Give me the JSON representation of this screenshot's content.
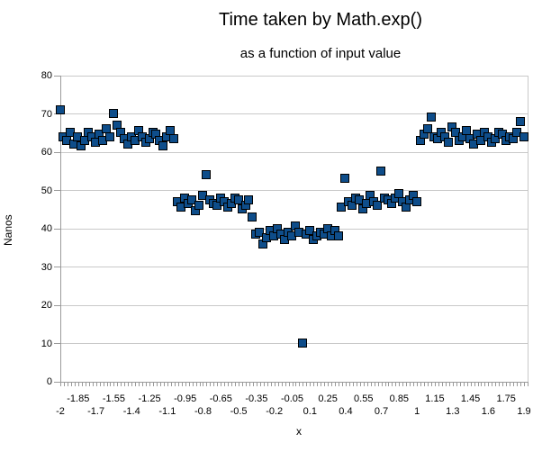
{
  "chart": {
    "title": "Time taken by Math.exp()",
    "subtitle": "as a function of input value",
    "y_axis_title": "Nanos",
    "x_axis_title": "x",
    "colors": {
      "marker_fill": "#0e4d8a",
      "marker_border": "#000000",
      "gridline": "#c9c9c9",
      "axis": "#9a9a9a",
      "text": "#000000",
      "background": "#ffffff"
    }
  },
  "chart_data": {
    "type": "scatter",
    "title": "Time taken by Math.exp()",
    "subtitle": "as a function of input value",
    "xlabel": "x",
    "ylabel": "Nanos",
    "xlim": [
      -2,
      1.93
    ],
    "ylim": [
      0,
      80
    ],
    "grid": "horizontal",
    "legend": "none",
    "marker": "filled-square",
    "y_ticks": [
      0,
      10,
      20,
      30,
      40,
      50,
      60,
      70,
      80
    ],
    "x_tick_labels_row1": [
      "-1.85",
      "-1.55",
      "-1.25",
      "-0.95",
      "-0.65",
      "-0.35",
      "-0.05",
      "0.25",
      "0.55",
      "0.85",
      "1.15",
      "1.45",
      "1.75"
    ],
    "x_tick_labels_row2": [
      "-2",
      "-1.7",
      "-1.4",
      "-1.1",
      "-0.8",
      "-0.5",
      "-0.2",
      "0.1",
      "0.4",
      "0.7",
      "1",
      "1.3",
      "1.6",
      "1.9"
    ],
    "x_minor_tick_step": 0.03,
    "points": [
      [
        -2.0,
        71
      ],
      [
        -1.97,
        64
      ],
      [
        -1.94,
        63
      ],
      [
        -1.91,
        65
      ],
      [
        -1.88,
        62
      ],
      [
        -1.85,
        64
      ],
      [
        -1.82,
        61.5
      ],
      [
        -1.79,
        63
      ],
      [
        -1.76,
        65
      ],
      [
        -1.73,
        64
      ],
      [
        -1.7,
        62.5
      ],
      [
        -1.67,
        64.5
      ],
      [
        -1.64,
        63
      ],
      [
        -1.61,
        66
      ],
      [
        -1.58,
        64
      ],
      [
        -1.55,
        70
      ],
      [
        -1.52,
        67
      ],
      [
        -1.49,
        65
      ],
      [
        -1.46,
        63.5
      ],
      [
        -1.43,
        62
      ],
      [
        -1.4,
        64
      ],
      [
        -1.37,
        63
      ],
      [
        -1.34,
        65.5
      ],
      [
        -1.31,
        64
      ],
      [
        -1.28,
        62.5
      ],
      [
        -1.25,
        63.5
      ],
      [
        -1.22,
        65
      ],
      [
        -1.19,
        64.5
      ],
      [
        -1.16,
        63
      ],
      [
        -1.13,
        61.5
      ],
      [
        -1.1,
        64
      ],
      [
        -1.07,
        65.5
      ],
      [
        -1.04,
        63.5
      ],
      [
        -1.01,
        47
      ],
      [
        -0.98,
        45.5
      ],
      [
        -0.95,
        48
      ],
      [
        -0.92,
        46.5
      ],
      [
        -0.89,
        47.5
      ],
      [
        -0.86,
        44.5
      ],
      [
        -0.83,
        46
      ],
      [
        -0.8,
        48.5
      ],
      [
        -0.77,
        54
      ],
      [
        -0.74,
        47.5
      ],
      [
        -0.71,
        46.5
      ],
      [
        -0.68,
        46
      ],
      [
        -0.65,
        48
      ],
      [
        -0.62,
        47
      ],
      [
        -0.59,
        45.5
      ],
      [
        -0.56,
        46.5
      ],
      [
        -0.53,
        48
      ],
      [
        -0.5,
        47.5
      ],
      [
        -0.47,
        45
      ],
      [
        -0.44,
        46
      ],
      [
        -0.41,
        47.5
      ],
      [
        -0.38,
        43
      ],
      [
        -0.35,
        38.5
      ],
      [
        -0.32,
        39
      ],
      [
        -0.29,
        36
      ],
      [
        -0.26,
        37.5
      ],
      [
        -0.23,
        39.5
      ],
      [
        -0.2,
        38
      ],
      [
        -0.17,
        40
      ],
      [
        -0.14,
        38.5
      ],
      [
        -0.11,
        37
      ],
      [
        -0.08,
        39
      ],
      [
        -0.05,
        38
      ],
      [
        -0.02,
        40.5
      ],
      [
        0.01,
        39
      ],
      [
        0.04,
        10
      ],
      [
        0.07,
        38.5
      ],
      [
        0.1,
        39.5
      ],
      [
        0.13,
        37
      ],
      [
        0.16,
        38
      ],
      [
        0.19,
        39
      ],
      [
        0.22,
        38.5
      ],
      [
        0.25,
        40
      ],
      [
        0.28,
        38
      ],
      [
        0.31,
        39.5
      ],
      [
        0.34,
        38
      ],
      [
        0.37,
        45.5
      ],
      [
        0.4,
        53
      ],
      [
        0.43,
        47
      ],
      [
        0.46,
        46
      ],
      [
        0.49,
        48
      ],
      [
        0.52,
        47.5
      ],
      [
        0.55,
        45
      ],
      [
        0.58,
        46.5
      ],
      [
        0.61,
        48.5
      ],
      [
        0.64,
        47
      ],
      [
        0.67,
        46
      ],
      [
        0.7,
        55
      ],
      [
        0.73,
        48
      ],
      [
        0.76,
        47.5
      ],
      [
        0.79,
        46.5
      ],
      [
        0.82,
        48
      ],
      [
        0.85,
        49
      ],
      [
        0.88,
        47
      ],
      [
        0.91,
        45.5
      ],
      [
        0.94,
        47.5
      ],
      [
        0.97,
        48.5
      ],
      [
        1.0,
        47
      ],
      [
        1.03,
        63
      ],
      [
        1.06,
        64.5
      ],
      [
        1.09,
        66
      ],
      [
        1.12,
        69
      ],
      [
        1.15,
        64
      ],
      [
        1.18,
        63.5
      ],
      [
        1.21,
        65
      ],
      [
        1.24,
        64
      ],
      [
        1.27,
        62.5
      ],
      [
        1.3,
        66.5
      ],
      [
        1.33,
        65
      ],
      [
        1.36,
        63
      ],
      [
        1.39,
        64
      ],
      [
        1.42,
        65.5
      ],
      [
        1.45,
        63.5
      ],
      [
        1.48,
        62
      ],
      [
        1.51,
        64.5
      ],
      [
        1.54,
        63
      ],
      [
        1.57,
        65
      ],
      [
        1.6,
        64
      ],
      [
        1.63,
        62.5
      ],
      [
        1.66,
        63.5
      ],
      [
        1.69,
        65
      ],
      [
        1.72,
        64.5
      ],
      [
        1.75,
        63
      ],
      [
        1.78,
        64
      ],
      [
        1.81,
        63.5
      ],
      [
        1.84,
        65
      ],
      [
        1.87,
        68
      ],
      [
        1.9,
        64
      ]
    ]
  }
}
